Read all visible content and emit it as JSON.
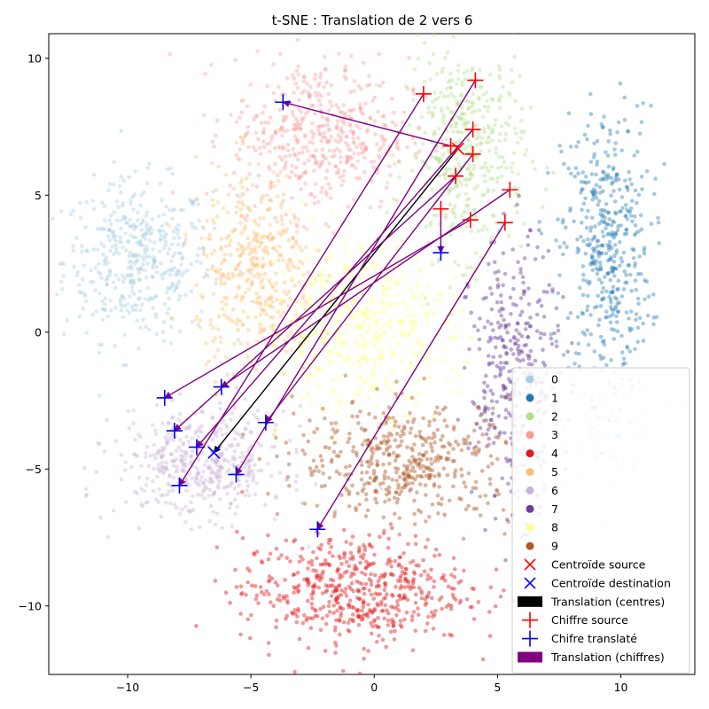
{
  "chart_data": {
    "type": "scatter",
    "title": "t-SNE : Translation de 2 vers 6",
    "xlabel": "",
    "ylabel": "",
    "xlim": [
      -13.2,
      13.0
    ],
    "ylim": [
      -12.5,
      10.9
    ],
    "xticks": [
      -10,
      -5,
      0,
      5,
      10
    ],
    "yticks": [
      -10,
      -5,
      0,
      5,
      10
    ],
    "grid": false,
    "legend_position": "lower right",
    "clusters": [
      {
        "name": "0",
        "color": "#a6cee3",
        "alpha": 0.4,
        "center": [
          -9.6,
          2.6
        ],
        "sx": 1.5,
        "sy": 1.45,
        "n": 440
      },
      {
        "name": "0",
        "color": "#a6cee3",
        "alpha": 0.4,
        "center": [
          9.7,
          -3.3
        ],
        "sx": 0.9,
        "sy": 0.9,
        "n": 100
      },
      {
        "name": "1",
        "color": "#1f78b4",
        "alpha": 0.4,
        "center": [
          9.4,
          3.0
        ],
        "sx": 0.9,
        "sy": 2.6,
        "n": 460
      },
      {
        "name": "2",
        "color": "#b2df8a",
        "alpha": 0.4,
        "center": [
          3.7,
          6.6
        ],
        "sx": 1.2,
        "sy": 1.9,
        "n": 440
      },
      {
        "name": "3",
        "color": "#fb9a99",
        "alpha": 0.4,
        "center": [
          -2.2,
          7.2
        ],
        "sx": 1.8,
        "sy": 1.4,
        "n": 480
      },
      {
        "name": "4",
        "color": "#e31a1c",
        "alpha": 0.45,
        "center": [
          -0.8,
          -9.4
        ],
        "sx": 2.3,
        "sy": 1.0,
        "n": 560
      },
      {
        "name": "5",
        "color": "#fdbf6f",
        "alpha": 0.4,
        "center": [
          -4.8,
          2.2
        ],
        "sx": 1.2,
        "sy": 1.9,
        "n": 420
      },
      {
        "name": "6",
        "color": "#cab2d6",
        "alpha": 0.4,
        "center": [
          -7.0,
          -4.8
        ],
        "sx": 1.7,
        "sy": 1.0,
        "n": 460
      },
      {
        "name": "7",
        "color": "#6a3d9a",
        "alpha": 0.45,
        "center": [
          5.7,
          -1.6
        ],
        "sx": 0.9,
        "sy": 2.4,
        "n": 360
      },
      {
        "name": "8",
        "color": "#ffff99",
        "alpha": 0.5,
        "center": [
          -0.6,
          0.2
        ],
        "sx": 1.9,
        "sy": 1.5,
        "n": 460
      },
      {
        "name": "9",
        "color": "#b15928",
        "alpha": 0.45,
        "center": [
          1.3,
          -4.7
        ],
        "sx": 2.2,
        "sy": 1.1,
        "n": 460
      }
    ],
    "centroid_source": [
      3.4,
      6.7
    ],
    "centroid_destination": [
      -6.5,
      -4.4
    ],
    "digit_translations": [
      {
        "source": [
          2.0,
          8.7
        ],
        "translated": [
          -7.9,
          -5.6
        ]
      },
      {
        "source": [
          4.1,
          9.2
        ],
        "translated": [
          -5.6,
          -5.2
        ]
      },
      {
        "source": [
          4.0,
          7.4
        ],
        "translated": [
          -7.2,
          -4.2
        ]
      },
      {
        "source": [
          3.1,
          6.8
        ],
        "translated": [
          -3.7,
          8.4
        ]
      },
      {
        "source": [
          4.0,
          6.5
        ],
        "translated": [
          -4.4,
          -3.3
        ]
      },
      {
        "source": [
          3.3,
          5.7
        ],
        "translated": [
          -8.1,
          -3.6
        ]
      },
      {
        "source": [
          5.5,
          5.2
        ],
        "translated": [
          -6.2,
          -2.0
        ]
      },
      {
        "source": [
          2.7,
          4.5
        ],
        "translated": [
          2.7,
          2.9
        ]
      },
      {
        "source": [
          3.9,
          4.1
        ],
        "translated": [
          -8.5,
          -2.4
        ]
      },
      {
        "source": [
          5.3,
          4.0
        ],
        "translated": [
          -2.3,
          -7.2
        ]
      }
    ],
    "legend": [
      {
        "label": "0",
        "kind": "dot",
        "color": "#a6cee3"
      },
      {
        "label": "1",
        "kind": "dot",
        "color": "#1f78b4"
      },
      {
        "label": "2",
        "kind": "dot",
        "color": "#b2df8a"
      },
      {
        "label": "3",
        "kind": "dot",
        "color": "#fb9a99"
      },
      {
        "label": "4",
        "kind": "dot",
        "color": "#e31a1c"
      },
      {
        "label": "5",
        "kind": "dot",
        "color": "#fdbf6f"
      },
      {
        "label": "6",
        "kind": "dot",
        "color": "#cab2d6"
      },
      {
        "label": "7",
        "kind": "dot",
        "color": "#6a3d9a"
      },
      {
        "label": "8",
        "kind": "dot",
        "color": "#ffff99"
      },
      {
        "label": "9",
        "kind": "dot",
        "color": "#b15928"
      },
      {
        "label": "Centroïde source",
        "kind": "x",
        "color": "#ff0000"
      },
      {
        "label": "Centroïde destination",
        "kind": "x",
        "color": "#0000ff"
      },
      {
        "label": "Translation (centres)",
        "kind": "patch",
        "color": "#000000"
      },
      {
        "label": "Chiffre source",
        "kind": "plus",
        "color": "#ff0000"
      },
      {
        "label": "Chifre translaté",
        "kind": "plus",
        "color": "#0000ff"
      },
      {
        "label": "Translation (chiffres)",
        "kind": "patch",
        "color": "#800080"
      }
    ],
    "colors": {
      "centroid_arrow": "#000000",
      "digit_arrow": "#800080",
      "source_marker": "#ff0000",
      "destination_marker": "#0000ff"
    }
  }
}
